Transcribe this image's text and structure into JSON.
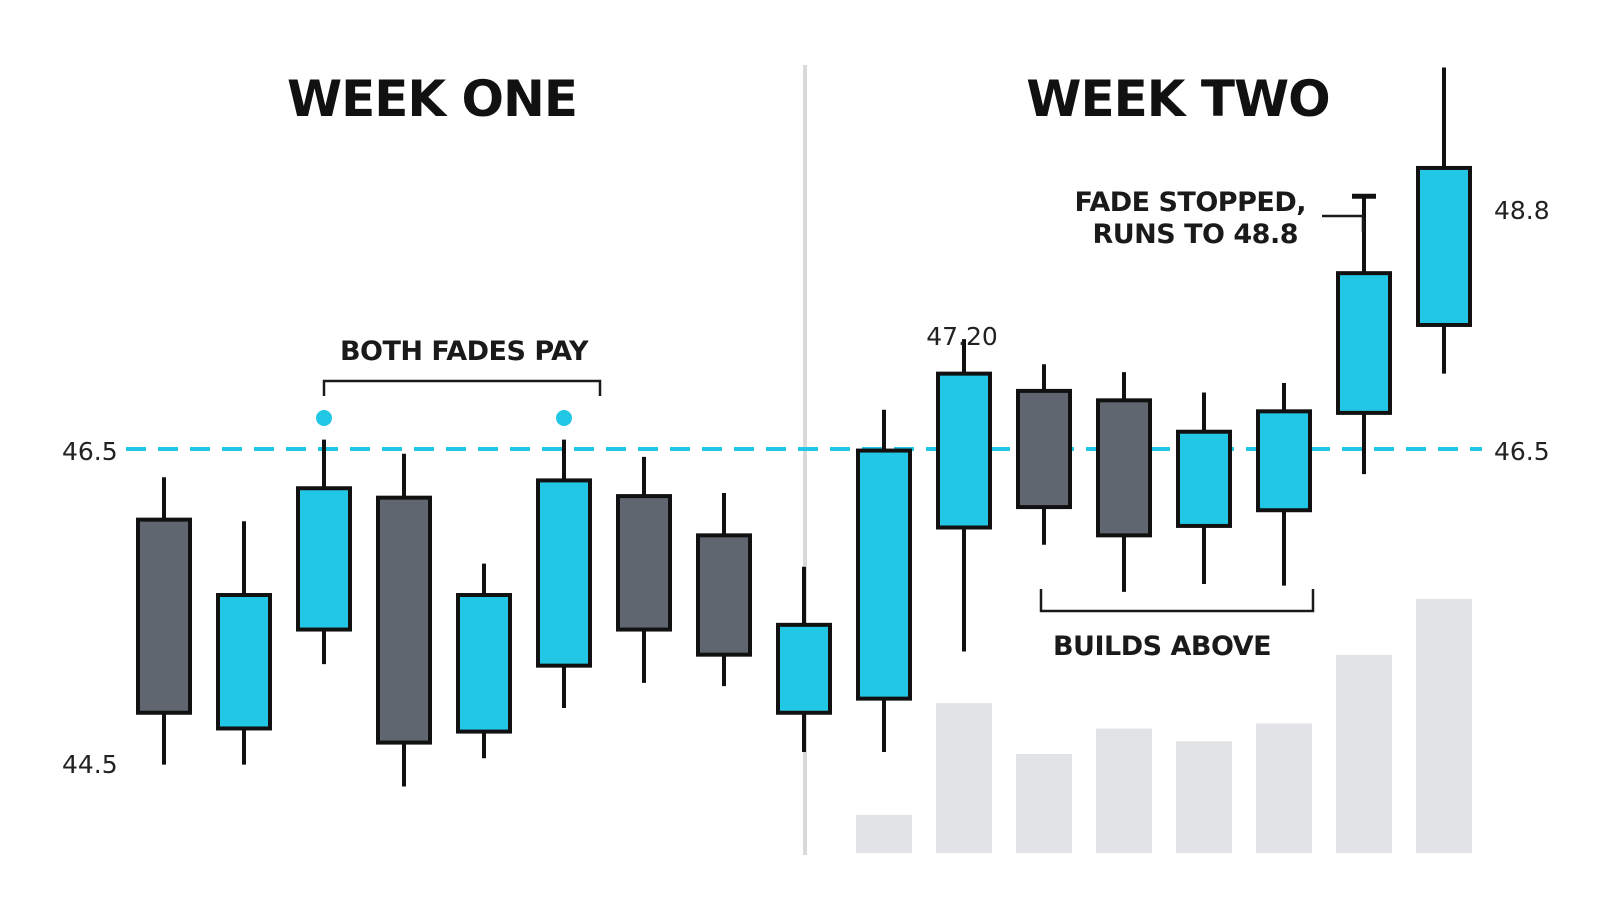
{
  "chart_data": {
    "type": "candlestick",
    "panels": [
      {
        "title": "WEEK ONE",
        "candles": [
          0,
          1,
          2,
          3,
          4,
          5,
          6,
          7,
          8
        ]
      },
      {
        "title": "WEEK TWO",
        "candles": [
          9,
          10,
          11,
          12,
          13,
          14,
          15,
          16
        ]
      }
    ],
    "ylim": [
      44.25,
      49.0
    ],
    "y_ticks_left": [
      "46.5",
      "44.5"
    ],
    "y_ticks_right": [
      "48.8",
      "46.5"
    ],
    "reference_line": {
      "value": 46.5,
      "style": "dashed",
      "color": "#22c7e6"
    },
    "candles": [
      {
        "open": 46.05,
        "high": 46.32,
        "low": 44.49,
        "close": 44.82,
        "color": "gray"
      },
      {
        "open": 44.72,
        "high": 46.04,
        "low": 44.49,
        "close": 45.57,
        "color": "cyan"
      },
      {
        "open": 45.35,
        "high": 46.56,
        "low": 45.13,
        "close": 46.25,
        "color": "cyan"
      },
      {
        "open": 46.19,
        "high": 46.47,
        "low": 44.35,
        "close": 44.63,
        "color": "gray"
      },
      {
        "open": 44.7,
        "high": 45.77,
        "low": 44.53,
        "close": 45.57,
        "color": "cyan"
      },
      {
        "open": 45.12,
        "high": 46.56,
        "low": 44.85,
        "close": 46.3,
        "color": "cyan"
      },
      {
        "open": 46.2,
        "high": 46.45,
        "low": 45.01,
        "close": 45.35,
        "color": "gray"
      },
      {
        "open": 45.95,
        "high": 46.22,
        "low": 44.99,
        "close": 45.19,
        "color": "gray"
      },
      {
        "open": 44.82,
        "high": 45.75,
        "low": 44.57,
        "close": 45.38,
        "color": "cyan"
      },
      {
        "open": 44.91,
        "high": 46.75,
        "low": 44.57,
        "close": 46.49,
        "color": "cyan"
      },
      {
        "open": 46.0,
        "high": 47.2,
        "low": 45.21,
        "close": 46.98,
        "color": "cyan"
      },
      {
        "open": 46.87,
        "high": 47.04,
        "low": 45.89,
        "close": 46.13,
        "color": "gray"
      },
      {
        "open": 46.81,
        "high": 46.99,
        "low": 45.59,
        "close": 45.95,
        "color": "gray"
      },
      {
        "open": 46.01,
        "high": 46.86,
        "low": 45.64,
        "close": 46.61,
        "color": "cyan"
      },
      {
        "open": 46.11,
        "high": 46.92,
        "low": 45.63,
        "close": 46.74,
        "color": "cyan"
      },
      {
        "open": 46.73,
        "high": 48.11,
        "low": 46.34,
        "close": 47.62,
        "color": "cyan"
      },
      {
        "open": 47.29,
        "high": 48.93,
        "low": 46.98,
        "close": 48.29,
        "color": "cyan"
      }
    ],
    "volume": [
      {
        "candle": 9,
        "value": 15
      },
      {
        "candle": 10,
        "value": 59
      },
      {
        "candle": 11,
        "value": 39
      },
      {
        "candle": 12,
        "value": 49
      },
      {
        "candle": 13,
        "value": 44
      },
      {
        "candle": 14,
        "value": 51
      },
      {
        "candle": 15,
        "value": 78
      },
      {
        "candle": 16,
        "value": 100
      }
    ],
    "markers": [
      {
        "candle": 2,
        "type": "dot"
      },
      {
        "candle": 5,
        "type": "dot"
      }
    ],
    "annotations": [
      {
        "text": "BOTH FADES PAY",
        "bracket_from": 2,
        "bracket_to": 5
      },
      {
        "text": "47.20",
        "candle": 10
      },
      {
        "text": "BUILDS ABOVE",
        "bracket_from": 11,
        "bracket_to": 14
      },
      {
        "text_lines": [
          "FADE STOPPED,",
          "RUNS TO 48.8"
        ],
        "candle": 15
      }
    ]
  },
  "colors": {
    "cyan": "#22c7e6",
    "gray": "#5f6670",
    "outline": "#111111",
    "volume": "#e2e3e6",
    "divider": "#d9d9d9"
  }
}
